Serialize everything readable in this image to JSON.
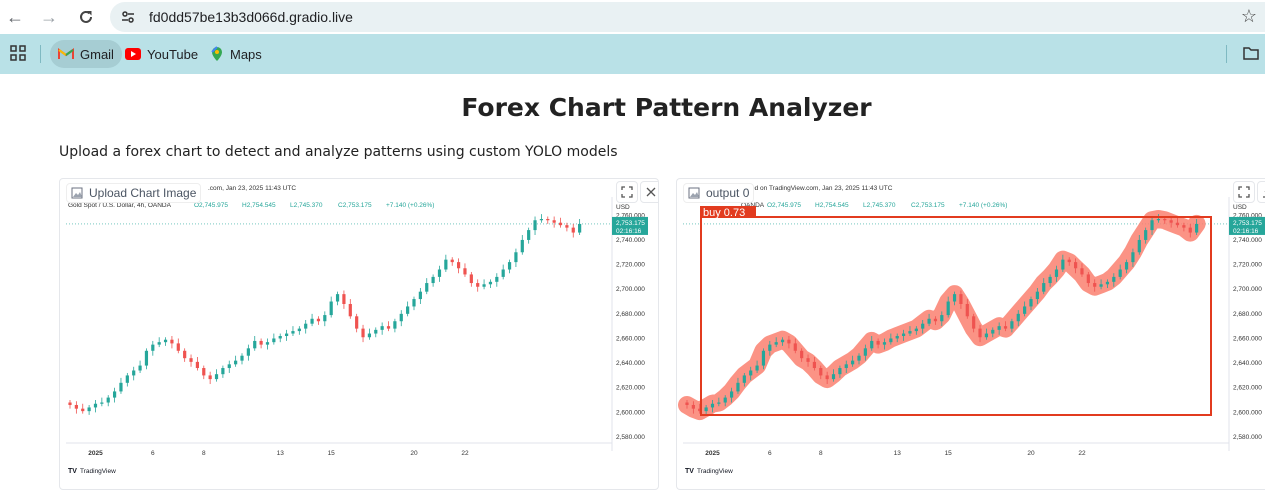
{
  "browser": {
    "url": "fd0dd57be13b3d066d.gradio.live",
    "bookmarks": [
      {
        "label": "Gmail",
        "icon": "gmail-icon"
      },
      {
        "label": "YouTube",
        "icon": "youtube-icon"
      },
      {
        "label": "Maps",
        "icon": "maps-icon"
      }
    ]
  },
  "page": {
    "title": "Forex Chart Pattern Analyzer",
    "description": "Upload a forex chart to detect and analyze patterns using custom YOLO models"
  },
  "input_panel": {
    "label": "Upload Chart Image"
  },
  "output_panel": {
    "label": "output 0",
    "detection_label": "buy 0.73"
  },
  "tv_chart": {
    "header_left": ".com, Jan 23, 2025 11:43 UTC",
    "header_right": "ed on TradingView.com, Jan 23, 2025 11:43 UTC",
    "ohlc_prefix": "Gold Spot / U.S. Dollar, 4h, OANDA",
    "ohlc_prefix_out": "OANDA",
    "o": "O2,745.975",
    "h": "H2,754.545",
    "l": "L2,745.370",
    "c": "C2,753.175",
    "chg": "+7.140 (+0.26%)",
    "currency": "USD",
    "last_price": "2,753.175",
    "countdown": "02:16:16",
    "brand": "TradingView",
    "y_ticks": [
      "2,760.000",
      "2,740.000",
      "2,720.000",
      "2,700.000",
      "2,680.000",
      "2,660.000",
      "2,640.000",
      "2,620.000",
      "2,600.000",
      "2,580.000"
    ],
    "x_ticks": [
      "2025",
      "6",
      "8",
      "13",
      "15",
      "20",
      "22"
    ]
  },
  "chart_data": {
    "type": "candlestick",
    "xlabel": "",
    "ylabel": "",
    "ylim": [
      2580,
      2770
    ],
    "x_ticks": [
      "2025",
      "6",
      "8",
      "13",
      "15",
      "20",
      "22"
    ],
    "close": [
      2606,
      2603,
      2601,
      2604,
      2607,
      2608,
      2612,
      2617,
      2624,
      2630,
      2634,
      2638,
      2650,
      2655,
      2657,
      2659,
      2656,
      2650,
      2644,
      2641,
      2636,
      2630,
      2627,
      2631,
      2636,
      2639,
      2642,
      2646,
      2652,
      2658,
      2655,
      2657,
      2660,
      2662,
      2664,
      2666,
      2668,
      2672,
      2676,
      2674,
      2679,
      2690,
      2696,
      2688,
      2678,
      2668,
      2661,
      2664,
      2667,
      2670,
      2668,
      2674,
      2680,
      2686,
      2692,
      2698,
      2705,
      2710,
      2716,
      2724,
      2722,
      2717,
      2712,
      2705,
      2702,
      2704,
      2706,
      2710,
      2716,
      2722,
      2730,
      2740,
      2748,
      2756,
      2757,
      2756,
      2754,
      2752,
      2750,
      2746,
      2753
    ]
  },
  "colors": {
    "up": "#26a69a",
    "down": "#ef5350",
    "detect": "#e23b1f",
    "band": "#fa8070"
  }
}
